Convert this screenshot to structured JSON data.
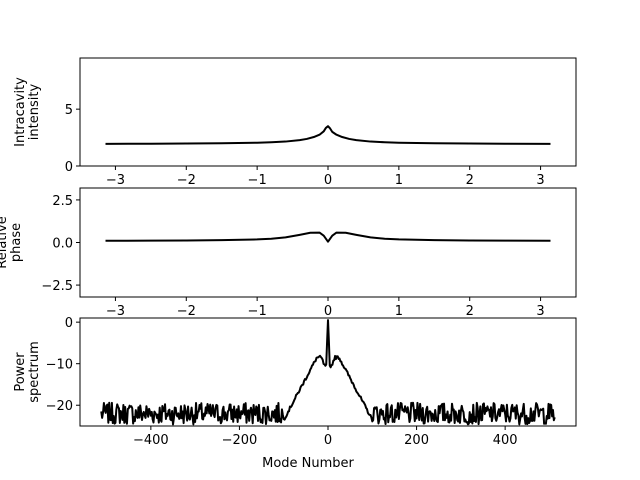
{
  "chart_data": [
    {
      "type": "line",
      "xlabel": "",
      "ylabel": [
        "Intracavity",
        "intensity"
      ],
      "xlim": [
        -3.5,
        3.5
      ],
      "ylim": [
        0,
        9.5
      ],
      "xticks": [
        -3,
        -2,
        -1,
        0,
        1,
        2,
        3
      ],
      "xtick_labels": [
        "−3",
        "−2",
        "−1",
        "0",
        "1",
        "2",
        "3"
      ],
      "yticks": [
        0,
        5
      ],
      "ytick_labels": [
        "0",
        "5"
      ],
      "series": [
        {
          "color": "#000000",
          "x": [
            -3.14,
            -2.5,
            -2.0,
            -1.5,
            -1.0,
            -0.8,
            -0.6,
            -0.4,
            -0.3,
            -0.2,
            -0.12,
            -0.06,
            -0.03,
            0.0,
            0.03,
            0.06,
            0.12,
            0.2,
            0.3,
            0.4,
            0.6,
            0.8,
            1.0,
            1.5,
            2.0,
            2.5,
            3.14
          ],
          "y": [
            1.95,
            1.96,
            1.98,
            2.0,
            2.05,
            2.09,
            2.15,
            2.28,
            2.38,
            2.55,
            2.75,
            3.05,
            3.35,
            3.5,
            3.3,
            3.0,
            2.75,
            2.55,
            2.38,
            2.28,
            2.15,
            2.09,
            2.05,
            2.0,
            1.98,
            1.96,
            1.95
          ]
        }
      ]
    },
    {
      "type": "line",
      "xlabel": "",
      "ylabel": [
        "Relative",
        "phase"
      ],
      "xlim": [
        -3.5,
        3.5
      ],
      "ylim": [
        -3.2,
        3.2
      ],
      "xticks": [
        -3,
        -2,
        -1,
        0,
        1,
        2,
        3
      ],
      "xtick_labels": [
        "−3",
        "−2",
        "−1",
        "0",
        "1",
        "2",
        "3"
      ],
      "yticks": [
        -2.5,
        0.0,
        2.5
      ],
      "ytick_labels": [
        "−2.5",
        "0.0",
        "2.5"
      ],
      "series": [
        {
          "color": "#000000",
          "x": [
            -3.14,
            -2.5,
            -2.0,
            -1.5,
            -1.0,
            -0.8,
            -0.6,
            -0.4,
            -0.25,
            -0.12,
            -0.06,
            0.0,
            0.06,
            0.12,
            0.25,
            0.4,
            0.6,
            0.8,
            1.0,
            1.5,
            2.0,
            2.5,
            3.14
          ],
          "y": [
            0.1,
            0.11,
            0.12,
            0.14,
            0.18,
            0.22,
            0.3,
            0.45,
            0.57,
            0.58,
            0.4,
            0.05,
            0.4,
            0.58,
            0.57,
            0.45,
            0.3,
            0.22,
            0.18,
            0.14,
            0.12,
            0.11,
            0.1
          ]
        }
      ]
    },
    {
      "type": "line",
      "xlabel": "Mode Number",
      "ylabel": [
        "Power",
        "spectrum"
      ],
      "xlim": [
        -560,
        560
      ],
      "ylim": [
        -25,
        1
      ],
      "xticks": [
        -400,
        -200,
        0,
        200,
        400
      ],
      "xtick_labels": [
        "−400",
        "−200",
        "0",
        "200",
        "400"
      ],
      "yticks": [
        -20,
        -10,
        0
      ],
      "ytick_labels": [
        "−20",
        "−10",
        "0"
      ],
      "noise": {
        "xmin": -512,
        "xmax": 512,
        "level": -22.0,
        "amplitude": 2.6,
        "step": 2
      },
      "envelope": [
        {
          "x": 0,
          "y": 0.5
        },
        {
          "x": 4,
          "y": -10.5
        },
        {
          "x": 8,
          "y": -10.5
        },
        {
          "x": 15,
          "y": -8.5
        },
        {
          "x": 25,
          "y": -8.5
        },
        {
          "x": 40,
          "y": -11.5
        },
        {
          "x": 55,
          "y": -14.5
        },
        {
          "x": 70,
          "y": -17.5
        },
        {
          "x": 85,
          "y": -20.5
        },
        {
          "x": 100,
          "y": -23.5
        }
      ]
    }
  ]
}
